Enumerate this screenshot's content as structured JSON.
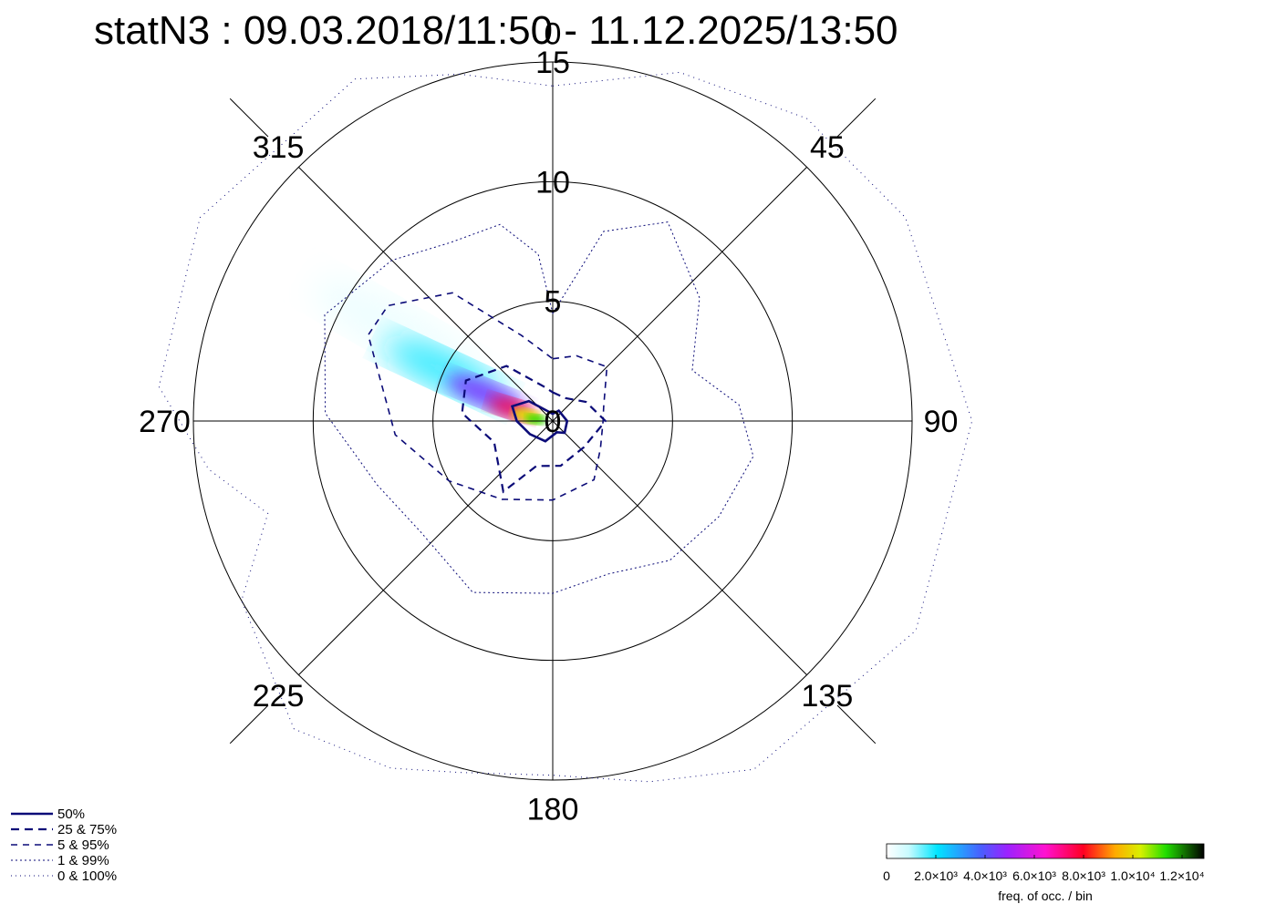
{
  "chart_data": {
    "type": "polar-frequency",
    "title": "statN3 : 09.03.2018/11:50 - 11.12.2025/13:50",
    "angular_ticks": [
      {
        "angle": 0,
        "label": "0"
      },
      {
        "angle": 45,
        "label": "45"
      },
      {
        "angle": 90,
        "label": "90"
      },
      {
        "angle": 135,
        "label": "135"
      },
      {
        "angle": 180,
        "label": "180"
      },
      {
        "angle": 225,
        "label": "225"
      },
      {
        "angle": 270,
        "label": "270"
      },
      {
        "angle": 315,
        "label": "315"
      }
    ],
    "radial_ticks": [
      {
        "r": 0,
        "label": "0"
      },
      {
        "r": 5,
        "label": "5"
      },
      {
        "r": 10,
        "label": "10"
      },
      {
        "r": 15,
        "label": "15"
      }
    ],
    "rmax": 15,
    "density_blobs": [
      {
        "dir": 300,
        "r": 7.5,
        "len": 8,
        "wid": 2.2,
        "level": 0.04
      },
      {
        "dir": 295,
        "r": 5.0,
        "len": 5.5,
        "wid": 1.6,
        "level": 0.15
      },
      {
        "dir": 292,
        "r": 3.0,
        "len": 3.5,
        "wid": 1.1,
        "level": 0.35
      },
      {
        "dir": 287,
        "r": 1.8,
        "len": 2.0,
        "wid": 0.8,
        "level": 0.6
      },
      {
        "dir": 282,
        "r": 1.1,
        "len": 1.3,
        "wid": 0.55,
        "level": 0.78
      },
      {
        "dir": 276,
        "r": 0.7,
        "len": 0.9,
        "wid": 0.4,
        "level": 0.88
      }
    ],
    "contours": {
      "c50": [
        [
          0,
          0.3
        ],
        [
          30,
          0.5
        ],
        [
          90,
          0.6
        ],
        [
          135,
          0.7
        ],
        [
          160,
          0.5
        ],
        [
          200,
          0.9
        ],
        [
          240,
          1.1
        ],
        [
          270,
          1.5
        ],
        [
          290,
          1.8
        ],
        [
          310,
          1.3
        ],
        [
          330,
          0.5
        ],
        [
          360,
          0.3
        ]
      ],
      "c25_75": [
        [
          0,
          1.2
        ],
        [
          30,
          1.1
        ],
        [
          60,
          1.6
        ],
        [
          90,
          2.2
        ],
        [
          130,
          1.7
        ],
        [
          170,
          1.9
        ],
        [
          200,
          2.0
        ],
        [
          215,
          3.6
        ],
        [
          250,
          2.6
        ],
        [
          275,
          3.8
        ],
        [
          295,
          4.0
        ],
        [
          320,
          3.0
        ],
        [
          345,
          1.5
        ],
        [
          360,
          1.2
        ]
      ],
      "c5_95": [
        [
          0,
          2.6
        ],
        [
          20,
          2.9
        ],
        [
          45,
          3.2
        ],
        [
          75,
          2.2
        ],
        [
          90,
          2.1
        ],
        [
          120,
          2.3
        ],
        [
          145,
          3.0
        ],
        [
          180,
          3.3
        ],
        [
          213,
          3.9
        ],
        [
          240,
          5.0
        ],
        [
          265,
          6.6
        ],
        [
          295,
          8.5
        ],
        [
          305,
          8.4
        ],
        [
          322,
          6.8
        ],
        [
          340,
          3.8
        ],
        [
          360,
          2.6
        ]
      ],
      "c1_99": [
        [
          0,
          4.5
        ],
        [
          15,
          8.2
        ],
        [
          30,
          9.6
        ],
        [
          50,
          8.0
        ],
        [
          70,
          6.2
        ],
        [
          85,
          7.8
        ],
        [
          100,
          8.5
        ],
        [
          120,
          8.0
        ],
        [
          140,
          7.6
        ],
        [
          160,
          6.8
        ],
        [
          180,
          7.2
        ],
        [
          205,
          7.9
        ],
        [
          230,
          7.2
        ],
        [
          250,
          7.8
        ],
        [
          272,
          9.5
        ],
        [
          295,
          10.5
        ],
        [
          315,
          9.5
        ],
        [
          330,
          8.6
        ],
        [
          345,
          8.5
        ],
        [
          355,
          7.0
        ],
        [
          360,
          4.5
        ]
      ],
      "c0_100": [
        [
          0,
          14.0
        ],
        [
          20,
          15.5
        ],
        [
          40,
          16.5
        ],
        [
          60,
          17.0
        ],
        [
          90,
          17.5
        ],
        [
          120,
          17.5
        ],
        [
          150,
          16.8
        ],
        [
          165,
          15.6
        ],
        [
          180,
          14.8
        ],
        [
          195,
          15.2
        ],
        [
          205,
          16.0
        ],
        [
          220,
          16.8
        ],
        [
          240,
          15.0
        ],
        [
          252,
          12.5
        ],
        [
          262,
          14.5
        ],
        [
          275,
          16.5
        ],
        [
          300,
          17.0
        ],
        [
          330,
          16.5
        ],
        [
          345,
          15.0
        ],
        [
          360,
          14.0
        ]
      ]
    },
    "legend": [
      {
        "label": "50%",
        "style": "solid"
      },
      {
        "label": "25 &  75%",
        "style": "dash"
      },
      {
        "label": "5 &  95%",
        "style": "dash-thin"
      },
      {
        "label": "1 &  99%",
        "style": "dot"
      },
      {
        "label": "0 & 100%",
        "style": "dot-sparse"
      }
    ],
    "legend_placement": "bottom-left",
    "colorbar": {
      "label": "freq. of occ. / bin",
      "ticks": [
        "0",
        "2.0×10³",
        "4.0×10³",
        "6.0×10³",
        "8.0×10³",
        "1.0×10⁴",
        "1.2×10⁴"
      ],
      "max": 12600,
      "placement": "bottom-right"
    },
    "colors": {
      "contour": "#0b0b78",
      "axes": "#000000"
    }
  }
}
